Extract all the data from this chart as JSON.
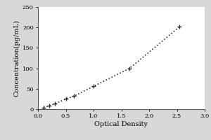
{
  "x_data": [
    0.1,
    0.2,
    0.3,
    0.5,
    0.65,
    1.0,
    1.65,
    2.55
  ],
  "y_data": [
    4,
    8,
    13,
    25,
    32,
    56,
    100,
    202
  ],
  "xlim": [
    0,
    3
  ],
  "ylim": [
    0,
    250
  ],
  "xticks": [
    0,
    0.5,
    1,
    1.5,
    2,
    2.5,
    3
  ],
  "yticks": [
    0,
    50,
    100,
    150,
    200,
    250
  ],
  "xlabel": "Optical Density",
  "ylabel": "Concentration(pg/mL)",
  "line_color": "#333333",
  "marker": "+",
  "marker_size": 5,
  "marker_lw": 1.0,
  "line_style": "dotted",
  "line_width": 1.2,
  "background_color": "#d8d8d8",
  "plot_bg_color": "#ffffff",
  "tick_fontsize": 6.0,
  "label_fontsize": 7.0,
  "spine_color": "#555555",
  "spine_lw": 0.8
}
